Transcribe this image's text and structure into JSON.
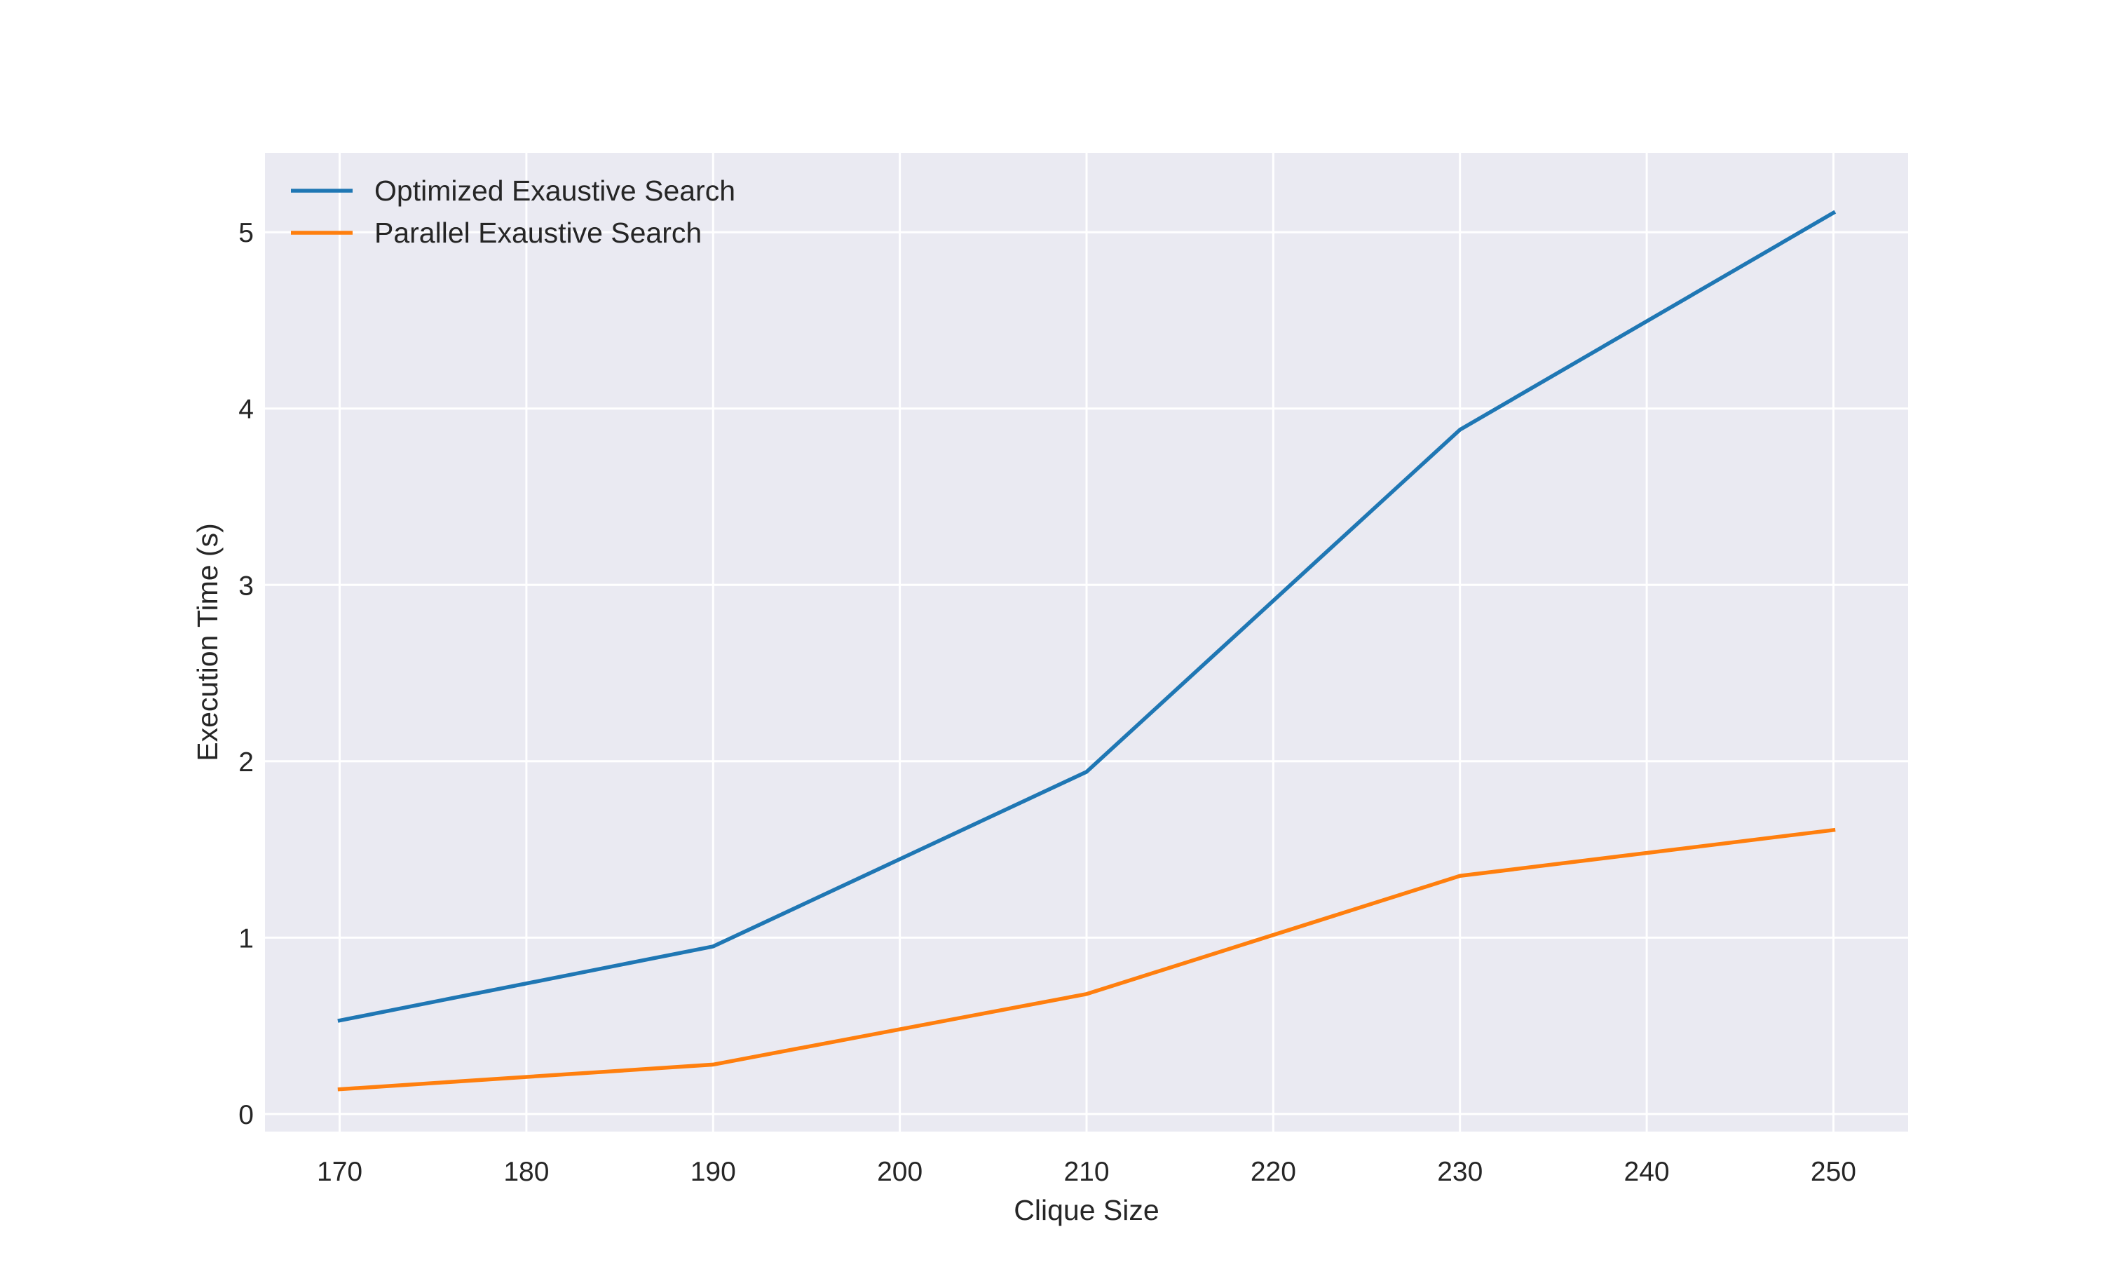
{
  "chart_data": {
    "type": "line",
    "title": "",
    "xlabel": "Clique Size",
    "ylabel": "Execution Time (s)",
    "x": [
      170,
      190,
      210,
      230,
      250
    ],
    "series": [
      {
        "name": "Optimized Exaustive Search",
        "color": "#1f77b4",
        "values": [
          0.53,
          0.95,
          1.94,
          3.88,
          5.11
        ]
      },
      {
        "name": "Parallel Exaustive Search",
        "color": "#ff7f0e",
        "values": [
          0.14,
          0.28,
          0.68,
          1.35,
          1.61
        ]
      }
    ],
    "xlim": [
      166,
      254
    ],
    "ylim": [
      -0.1,
      5.45
    ],
    "xticks": [
      170,
      180,
      190,
      200,
      210,
      220,
      230,
      240,
      250
    ],
    "yticks": [
      0,
      1,
      2,
      3,
      4,
      5
    ],
    "grid": true,
    "legend_position": "top-left",
    "background_color": "#eaeaf2",
    "grid_color": "#ffffff"
  }
}
